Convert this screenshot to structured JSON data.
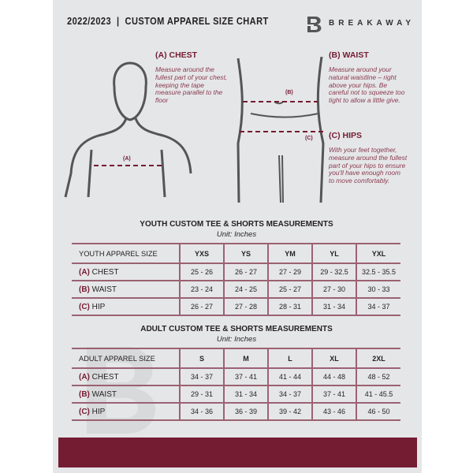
{
  "header": {
    "title": "2022/2023  |  CUSTOM APPAREL SIZE CHART",
    "brand": "BREAKAWAY",
    "logo_letter": "B"
  },
  "colors": {
    "accent": "#741c32",
    "background": "#e5e6e8"
  },
  "guide": {
    "chest": {
      "heading": "(A) CHEST",
      "text": "Measure around the fullest part of your chest, keeping the tape measure parallel to the floor",
      "marker": "(A)"
    },
    "waist": {
      "heading": "(B) WAIST",
      "text": "Measure around your natural waistline – right above your hips. Be careful not to squeeze too tight to allow a little give.",
      "marker": "(B)"
    },
    "hips": {
      "heading": "(C) HIPS",
      "text": "With your feet together, measure around the fullest part of your hips to ensure you'll have enough room to move comfortably.",
      "marker": "(C)"
    }
  },
  "youth": {
    "title": "YOUTH CUSTOM TEE & SHORTS MEASUREMENTS",
    "unit": "Unit: Inches",
    "header": [
      "YOUTH APPAREL SIZE",
      "YXS",
      "YS",
      "YM",
      "YL",
      "YXL"
    ],
    "rows": [
      {
        "letter": "(A)",
        "name": "CHEST",
        "values": [
          "25 - 26",
          "26 - 27",
          "27 - 29",
          "29 - 32.5",
          "32.5 - 35.5"
        ]
      },
      {
        "letter": "(B)",
        "name": "WAIST",
        "values": [
          "23 - 24",
          "24 - 25",
          "25 - 27",
          "27 - 30",
          "30 - 33"
        ]
      },
      {
        "letter": "(C)",
        "name": "HIP",
        "values": [
          "26 - 27",
          "27 - 28",
          "28 - 31",
          "31 - 34",
          "34 - 37"
        ]
      }
    ]
  },
  "adult": {
    "title": "ADULT CUSTOM TEE & SHORTS MEASUREMENTS",
    "unit": "Unit: Inches",
    "header": [
      "ADULT APPAREL SIZE",
      "S",
      "M",
      "L",
      "XL",
      "2XL"
    ],
    "rows": [
      {
        "letter": "(A)",
        "name": "CHEST",
        "values": [
          "34 - 37",
          "37 - 41",
          "41 - 44",
          "44 - 48",
          "48 - 52"
        ]
      },
      {
        "letter": "(B)",
        "name": "WAIST",
        "values": [
          "29 - 31",
          "31 - 34",
          "34 - 37",
          "37 - 41",
          "41 - 45.5"
        ]
      },
      {
        "letter": "(C)",
        "name": "HIP",
        "values": [
          "34 - 36",
          "36 - 39",
          "39 - 42",
          "43 - 46",
          "46 - 50"
        ]
      }
    ]
  }
}
